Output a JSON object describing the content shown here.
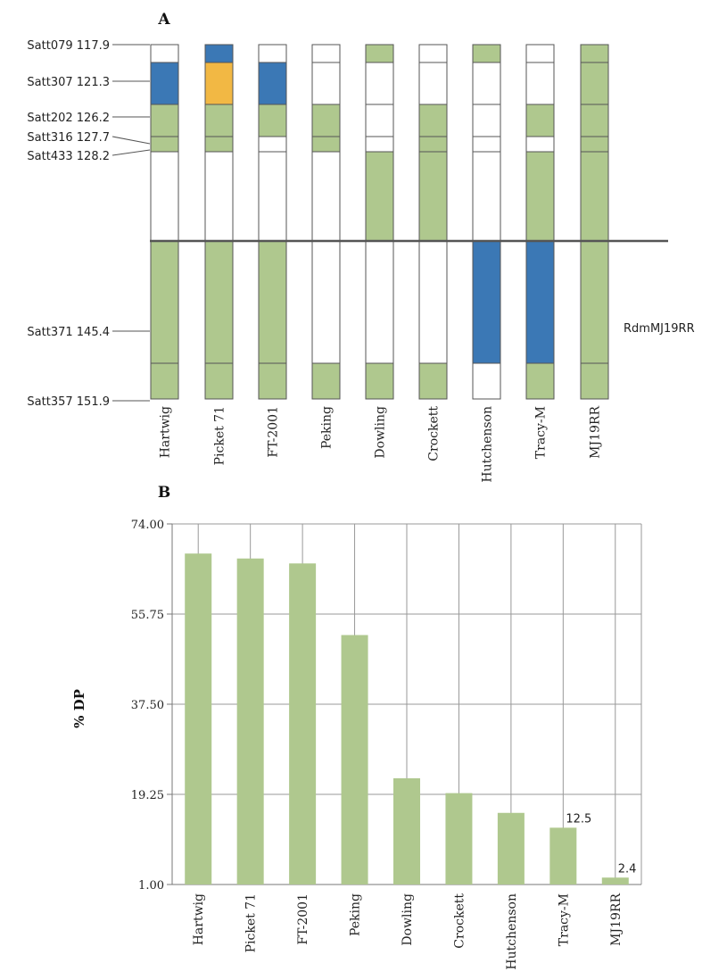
{
  "chart_data": [
    {
      "panel": "A",
      "type": "heatmap",
      "categories": [
        "Hartwig",
        "Picket 71",
        "FT-2001",
        "Peking",
        "Dowling",
        "Crockett",
        "Hutchenson",
        "Tracy-M",
        "MJ19RR"
      ],
      "markers": [
        {
          "name": "Satt079",
          "position": 117.9,
          "label": "Satt079 117.9"
        },
        {
          "name": "Satt307",
          "position": 121.3,
          "label": "Satt307 121.3"
        },
        {
          "name": "Satt202",
          "position": 126.2,
          "label": "Satt202 126.2"
        },
        {
          "name": "Satt316",
          "position": 127.7,
          "label": "Satt316 127.7"
        },
        {
          "name": "Satt433",
          "position": 128.2,
          "label": "Satt433 128.2"
        },
        {
          "name": "Satt371",
          "position": 145.4,
          "label": "Satt371 145.4"
        },
        {
          "name": "Satt357",
          "position": 151.9,
          "label": "Satt357 151.9"
        }
      ],
      "locus_label": "RdmMJ19RR",
      "colors": {
        "G": "#afc88e",
        "B": "#3b78b5",
        "O": "#f2b844",
        "W": "#ffffff"
      },
      "legend_codes": {
        "G": "green",
        "B": "blue",
        "O": "orange",
        "W": "white"
      },
      "genotypes": [
        [
          "W",
          "B",
          "G",
          "G",
          "W",
          "G",
          "G"
        ],
        [
          "B",
          "O",
          "G",
          "G",
          "W",
          "G",
          "G"
        ],
        [
          "W",
          "B",
          "G",
          "W",
          "W",
          "G",
          "G"
        ],
        [
          "W",
          "W",
          "G",
          "G",
          "W",
          "W",
          "G"
        ],
        [
          "G",
          "W",
          "W",
          "W",
          "G",
          "W",
          "G"
        ],
        [
          "W",
          "W",
          "G",
          "G",
          "G",
          "W",
          "G"
        ],
        [
          "G",
          "W",
          "W",
          "W",
          "W",
          "B",
          "W"
        ],
        [
          "W",
          "W",
          "G",
          "W",
          "G",
          "B",
          "G"
        ],
        [
          "G",
          "G",
          "G",
          "G",
          "G",
          "G",
          "G"
        ]
      ]
    },
    {
      "panel": "B",
      "type": "bar",
      "categories": [
        "Hartwig",
        "Picket 71",
        "FT-2001",
        "Peking",
        "Dowling",
        "Crockett",
        "Hutchenson",
        "Tracy-M",
        "MJ19RR"
      ],
      "values": [
        68,
        67,
        66,
        51.5,
        22.5,
        19.5,
        15.5,
        12.5,
        2.4
      ],
      "data_labels": [
        "",
        "",
        "",
        "",
        "",
        "",
        "",
        "12.5",
        "2.4"
      ],
      "ylabel": "% DP",
      "ylim": [
        1.0,
        74.0
      ],
      "yticks": [
        "74.00",
        "55.75",
        "37.50",
        "19.25",
        "1.00"
      ],
      "bar_color": "#afc88e",
      "grid": true
    }
  ]
}
